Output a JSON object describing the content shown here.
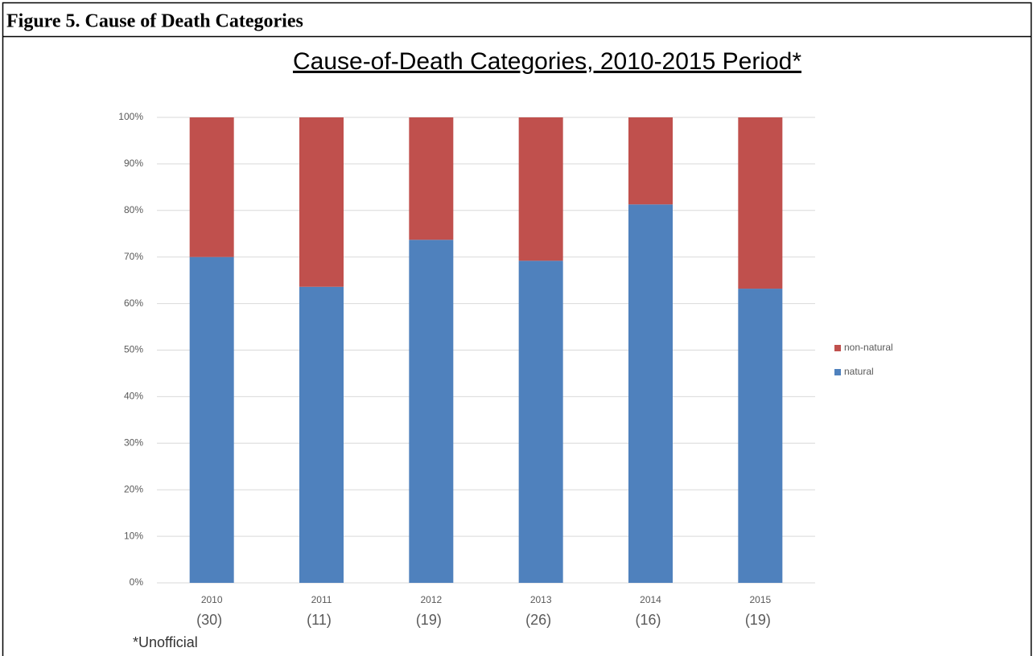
{
  "heading": "Figure 5.  Cause of Death Categories",
  "chart_data": {
    "type": "stacked-bar",
    "title": "Cause-of-Death Categories, 2010-2015 Period*",
    "categories": [
      "2010",
      "2011",
      "2012",
      "2013",
      "2014",
      "2015"
    ],
    "category_counts": [
      "(30)",
      "(11)",
      "(19)",
      "(26)",
      "(16)",
      "(19)"
    ],
    "series": [
      {
        "name": "natural",
        "color": "#4f81bd",
        "values": [
          70,
          63.6,
          73.7,
          69.2,
          81.3,
          63.2
        ]
      },
      {
        "name": "non-natural",
        "color": "#c0504d",
        "values": [
          30,
          36.4,
          26.3,
          30.8,
          18.7,
          36.8
        ]
      }
    ],
    "ylim": [
      0,
      100
    ],
    "yticks": [
      {
        "value": 0,
        "label": "0%"
      },
      {
        "value": 10,
        "label": "10%"
      },
      {
        "value": 20,
        "label": "20%"
      },
      {
        "value": 30,
        "label": "30%"
      },
      {
        "value": 40,
        "label": "40%"
      },
      {
        "value": 50,
        "label": "50%"
      },
      {
        "value": 60,
        "label": "60%"
      },
      {
        "value": 70,
        "label": "70%"
      },
      {
        "value": 80,
        "label": "80%"
      },
      {
        "value": 90,
        "label": "90%"
      },
      {
        "value": 100,
        "label": "100%"
      }
    ],
    "grid": true,
    "legend": "right",
    "footnote": "*Unofficial"
  }
}
